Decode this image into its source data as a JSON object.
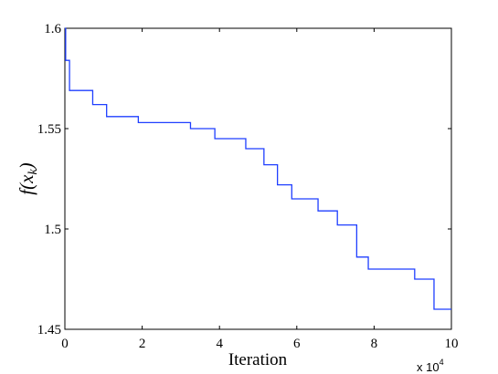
{
  "chart_data": {
    "type": "line",
    "title": "",
    "xlabel": "Iteration",
    "ylabel": {
      "prefix": "f(x",
      "subscript": "k",
      "suffix": ")"
    },
    "x_multiplier": {
      "base": "x 10",
      "exponent": "4"
    },
    "xlim": [
      0,
      10
    ],
    "ylim": [
      1.45,
      1.6
    ],
    "x_ticks": [
      0,
      2,
      4,
      6,
      8,
      10
    ],
    "x_tick_labels": [
      "0",
      "2",
      "4",
      "6",
      "8",
      "10"
    ],
    "y_ticks": [
      1.45,
      1.5,
      1.55,
      1.6
    ],
    "y_tick_labels": [
      "1.45",
      "1.5",
      "1.55",
      "1.6"
    ],
    "grid": false,
    "series_color": "#1f3fff",
    "series": [
      {
        "step": true,
        "x": [
          0,
          0.02,
          0.12,
          0.72,
          1.08,
          1.9,
          3.25,
          3.88,
          4.68,
          5.15,
          5.5,
          5.87,
          6.55,
          7.05,
          7.55,
          7.85,
          9.05,
          9.55,
          10
        ],
        "y": [
          1.6,
          1.584,
          1.569,
          1.562,
          1.556,
          1.553,
          1.55,
          1.545,
          1.54,
          1.532,
          1.522,
          1.515,
          1.509,
          1.502,
          1.486,
          1.48,
          1.475,
          1.46,
          1.46
        ]
      }
    ]
  }
}
